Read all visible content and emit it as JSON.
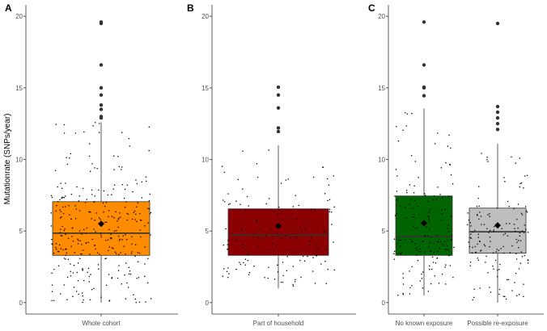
{
  "chart_data": {
    "type": "boxplot",
    "ylabel": "Mutationrate (SNPs/year)",
    "ylim": [
      -0.8,
      20.8
    ],
    "yticks": [
      0,
      5,
      10,
      15,
      20
    ],
    "grid": false,
    "colors": {
      "box_outline": "#333333",
      "point": "#000000",
      "axis": "#333333",
      "text": "#4d4d4d"
    },
    "panels": [
      {
        "label": "A",
        "categories": [
          {
            "name": "Whole cohort",
            "fill": "#ff8c00",
            "n_points": 320,
            "seed": 11,
            "stats": {
              "q1": 3.3,
              "median": 4.85,
              "q3": 7.05,
              "mean": 5.5,
              "whisker_low": 0.0,
              "whisker_high": 12.6
            },
            "outliers": [
              12.9,
              13.0,
              13.5,
              13.8,
              14.5,
              15.0,
              16.6,
              19.5,
              19.6
            ]
          }
        ]
      },
      {
        "label": "B",
        "categories": [
          {
            "name": "Part of household",
            "fill": "#8b0000",
            "n_points": 150,
            "seed": 23,
            "stats": {
              "q1": 3.3,
              "median": 4.7,
              "q3": 6.55,
              "mean": 5.35,
              "whisker_low": 1.0,
              "whisker_high": 11.0
            },
            "outliers": [
              11.95,
              12.2,
              13.6,
              14.5,
              15.05
            ]
          }
        ]
      },
      {
        "label": "C",
        "categories": [
          {
            "name": "No known exposure",
            "fill": "#006400",
            "n_points": 165,
            "seed": 37,
            "stats": {
              "q1": 3.3,
              "median": 4.6,
              "q3": 7.45,
              "mean": 5.55,
              "whisker_low": 0.5,
              "whisker_high": 13.55
            },
            "outliers": [
              14.45,
              15.0,
              15.05,
              16.6,
              19.6
            ]
          },
          {
            "name": "Possible re-exposure",
            "fill": "#bebebe",
            "n_points": 150,
            "seed": 53,
            "stats": {
              "q1": 3.45,
              "median": 4.95,
              "q3": 6.6,
              "mean": 5.4,
              "whisker_low": 0.0,
              "whisker_high": 11.1
            },
            "outliers": [
              12.1,
              12.5,
              12.9,
              13.3,
              13.7,
              19.5
            ]
          }
        ]
      }
    ]
  }
}
